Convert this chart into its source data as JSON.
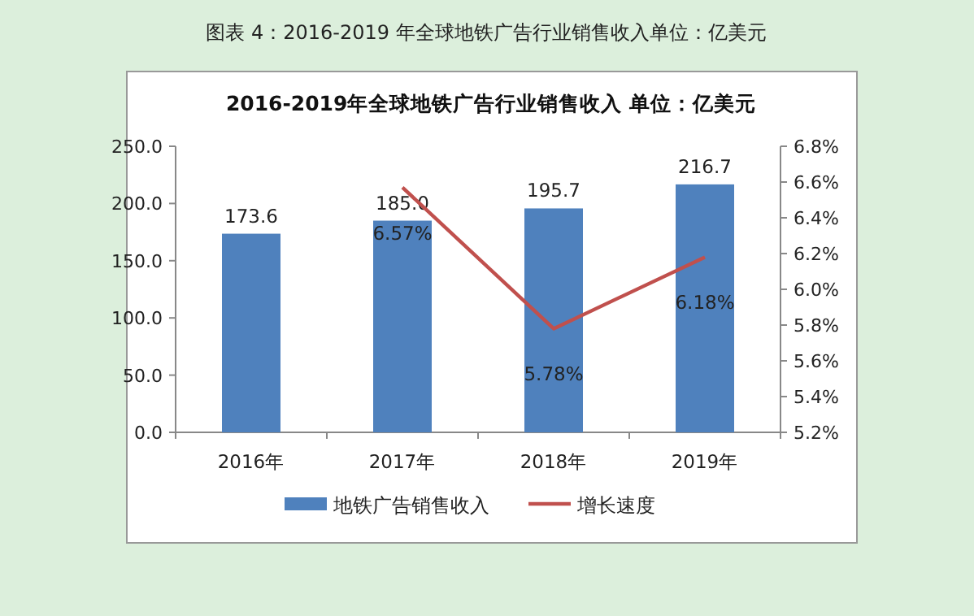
{
  "chart_data": {
    "type": "bar",
    "title": "图表 4：2016-2019 年全球地铁广告行业销售收入单位：亿美元",
    "subtitle": "2016-2019年全球地铁广告行业销售收入 单位：亿美元",
    "categories": [
      "2016年",
      "2017年",
      "2018年",
      "2019年"
    ],
    "series": [
      {
        "name": "地铁广告销售收入",
        "color": "#4f81bd",
        "values": [
          173.6,
          185.0,
          195.7,
          216.7
        ],
        "value_labels": [
          "173.6",
          "185.0",
          "195.7",
          "216.7"
        ]
      },
      {
        "name": "增长速度",
        "type": "line",
        "axis": "y2",
        "color": "#c0504d",
        "values": [
          null,
          6.57,
          5.78,
          6.18
        ],
        "value_labels": [
          null,
          "6.57%",
          "5.78%",
          "6.18%"
        ]
      }
    ],
    "ylim": [
      0,
      250
    ],
    "yticks": [
      {
        "value": 0,
        "label": "0.0"
      },
      {
        "value": 50,
        "label": "50.0"
      },
      {
        "value": 100,
        "label": "100.0"
      },
      {
        "value": 150,
        "label": "150.0"
      },
      {
        "value": 200,
        "label": "200.0"
      },
      {
        "value": 250,
        "label": "250.0"
      }
    ],
    "y2lim": [
      5.2,
      6.8
    ],
    "y2ticks": [
      {
        "value": 5.2,
        "label": "5.2%"
      },
      {
        "value": 5.4,
        "label": "5.4%"
      },
      {
        "value": 5.6,
        "label": "5.6%"
      },
      {
        "value": 5.8,
        "label": "5.8%"
      },
      {
        "value": 6.0,
        "label": "6.0%"
      },
      {
        "value": 6.2,
        "label": "6.2%"
      },
      {
        "value": 6.4,
        "label": "6.4%"
      },
      {
        "value": 6.6,
        "label": "6.6%"
      },
      {
        "value": 6.8,
        "label": "6.8%"
      }
    ],
    "legend": "bottom",
    "marker": "none"
  }
}
